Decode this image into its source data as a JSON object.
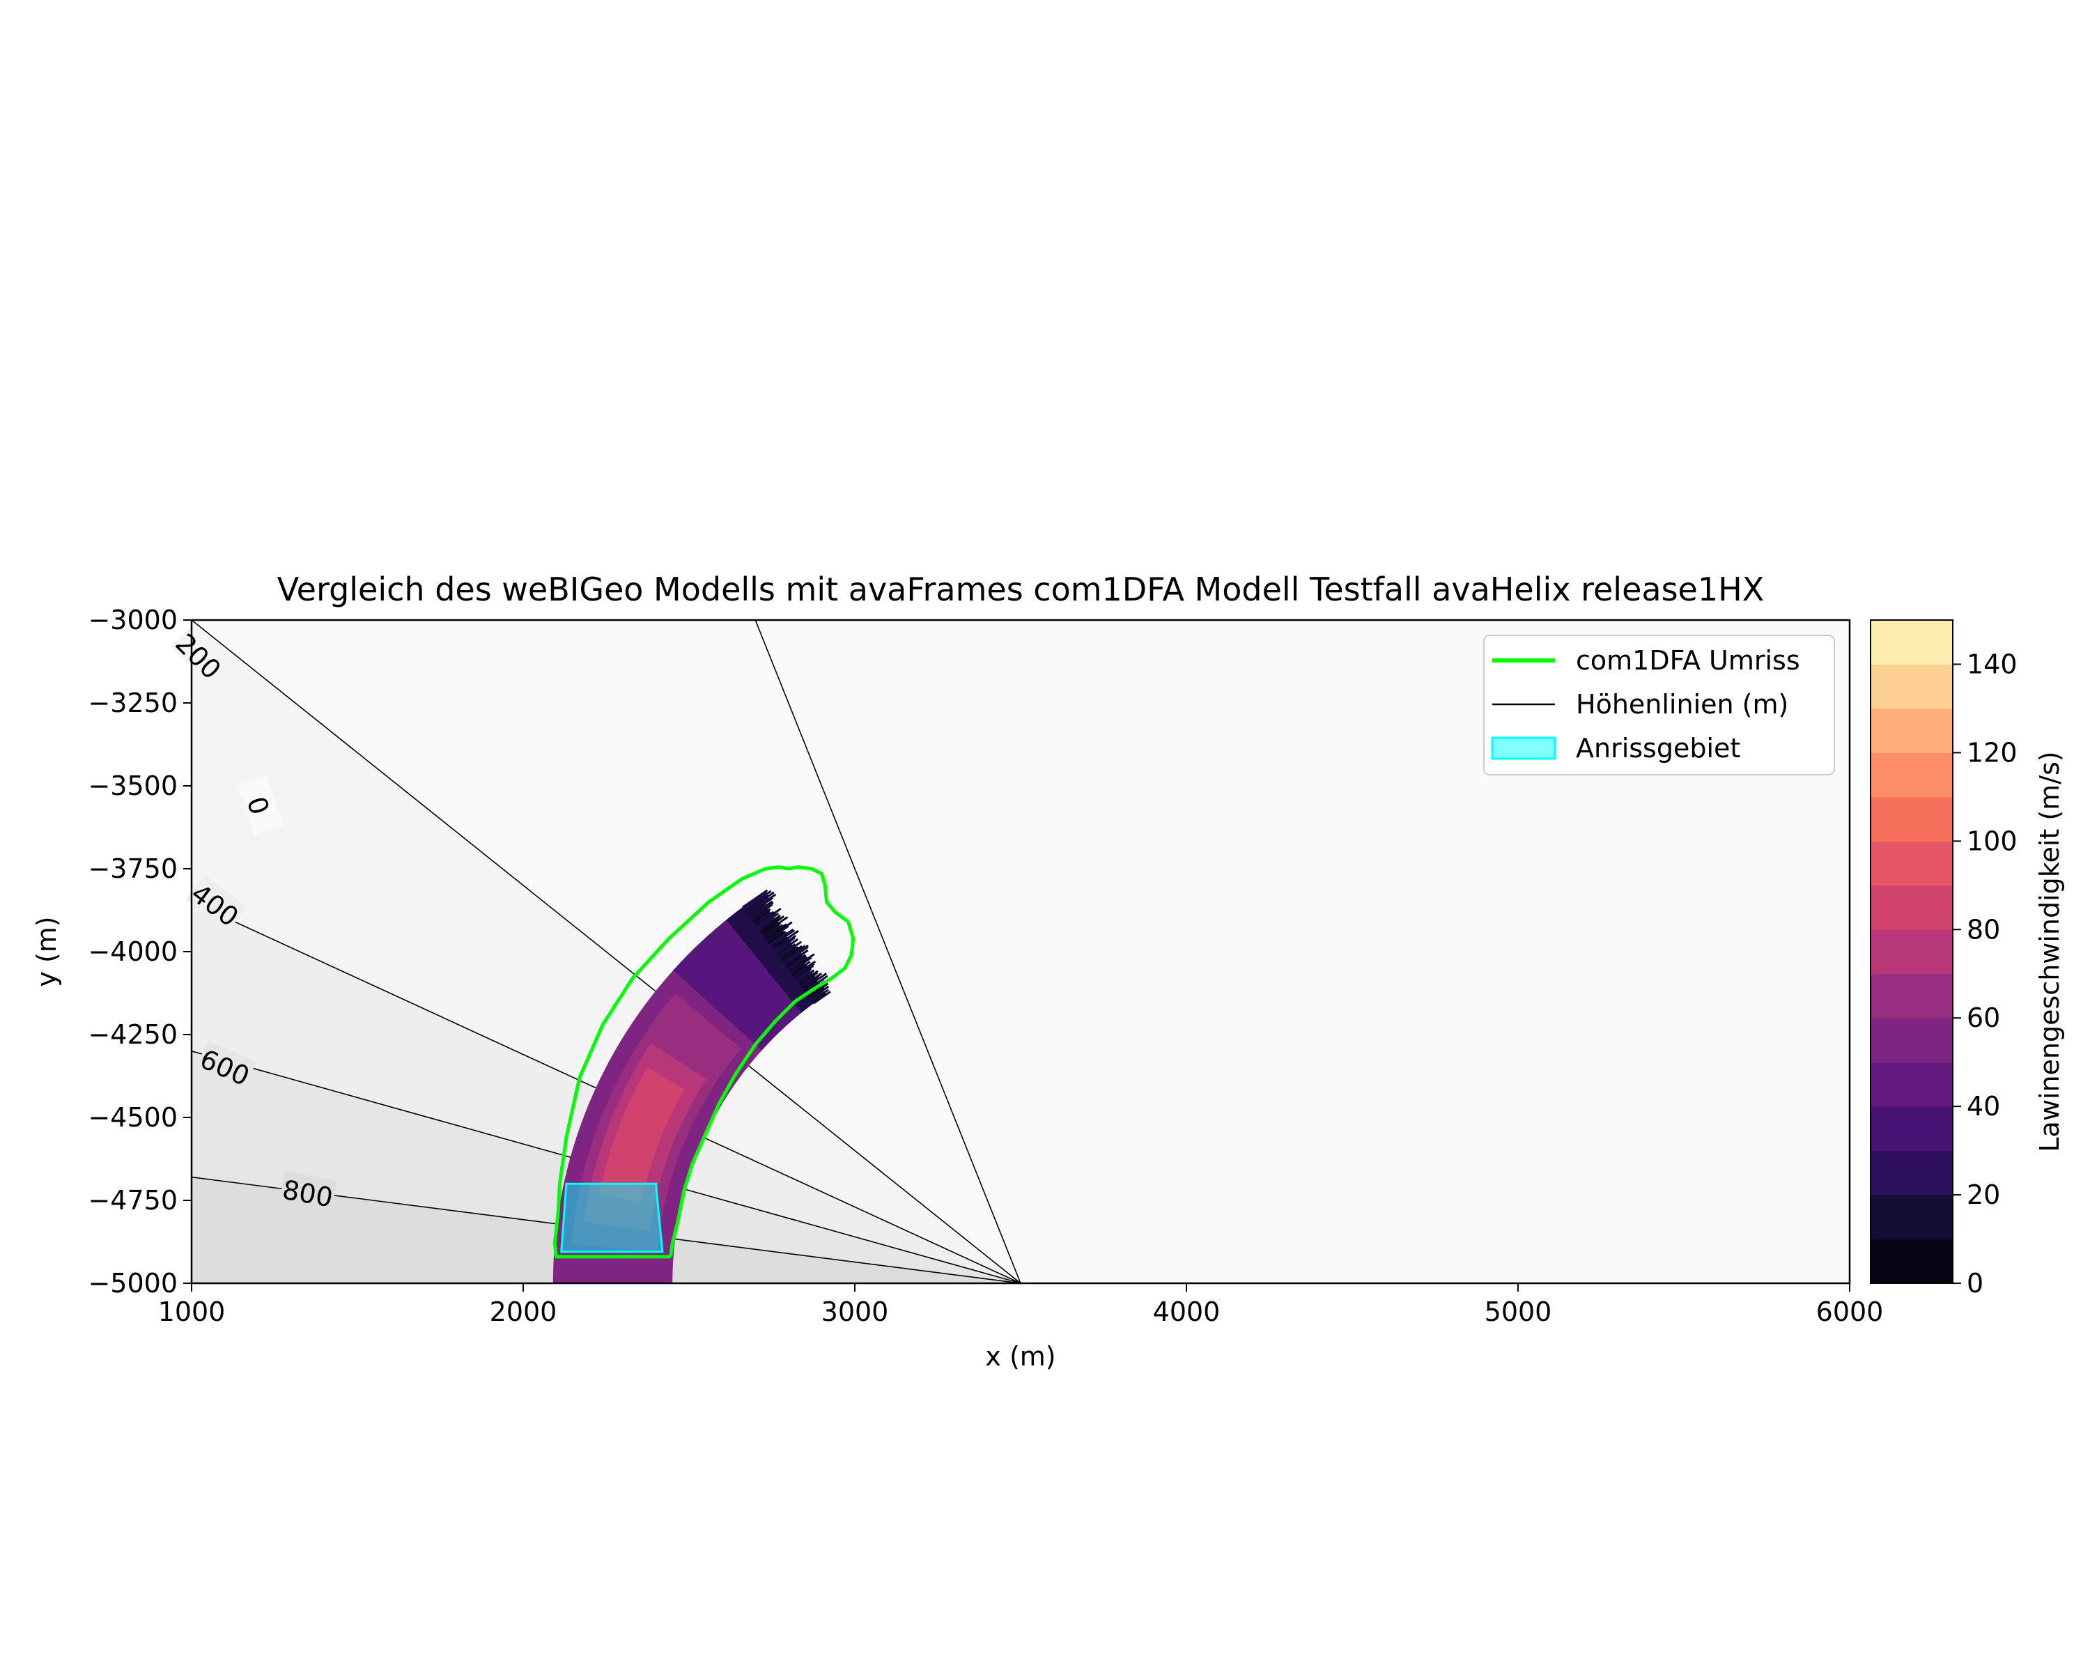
{
  "chart_data": {
    "type": "heatmap",
    "title": "Vergleich des weBIGeo Modells mit avaFrames com1DFA Modell Testfall avaHelix release1HX",
    "xlabel": "x (m)",
    "ylabel": "y (m)",
    "xlim": [
      1000,
      6000
    ],
    "ylim": [
      -5000,
      -3000
    ],
    "xticks": [
      "1000",
      "2000",
      "3000",
      "4000",
      "5000",
      "6000"
    ],
    "yticks": [
      "−3000",
      "−3250",
      "−3500",
      "−3750",
      "−4000",
      "−4250",
      "−4500",
      "−4750",
      "−5000"
    ],
    "legend_placement": "top-right",
    "legend": [
      {
        "label": "com1DFA Umriss",
        "kind": "line",
        "color": "#00ff00"
      },
      {
        "label": "Höhenlinien (m)",
        "kind": "line",
        "color": "#000000"
      },
      {
        "label": "Anrissgebiet",
        "kind": "patch",
        "color": "#00ffff"
      }
    ],
    "colorbar": {
      "label": "Lawinengeschwindigkeit (m/s)",
      "min": 0,
      "max": 150,
      "step": 10,
      "ticks": [
        "0",
        "20",
        "40",
        "60",
        "80",
        "100",
        "120",
        "140"
      ],
      "colors": [
        "#000004",
        "#140e36",
        "#3b0f70",
        "#641a80",
        "#8c2981",
        "#b73779",
        "#de4968",
        "#f7705c",
        "#fe9f6d",
        "#fecf92",
        "#fcfdbf"
      ]
    },
    "contours": {
      "apex": [
        3500,
        -5000
      ],
      "lines": [
        {
          "label": "0",
          "endpoint": [
            2700,
            -3000
          ]
        },
        {
          "label": "200",
          "endpoint": [
            1000,
            -3000
          ]
        },
        {
          "label": "400",
          "endpoint": [
            1000,
            -3850
          ]
        },
        {
          "label": "600",
          "endpoint": [
            1000,
            -4300
          ]
        },
        {
          "label": "800",
          "endpoint": [
            1000,
            -4680
          ]
        }
      ],
      "background_shades": [
        "#fafafa",
        "#f4f4f4",
        "#eeeeee",
        "#e6e6e6",
        "#dddddd"
      ]
    },
    "velocity_field": {
      "center": [
        3500,
        -5000
      ],
      "inner_radius": 1050,
      "outer_radius": 1410,
      "angle_start_deg": 180,
      "angle_end_deg": 125,
      "bands": [
        {
          "r": [
            1050,
            1410
          ],
          "a": [
            180,
            125
          ],
          "value": 55
        },
        {
          "r": [
            1100,
            1360
          ],
          "a": [
            175,
            140
          ],
          "value": 65
        },
        {
          "r": [
            1130,
            1330
          ],
          "a": [
            172,
            147
          ],
          "value": 75
        },
        {
          "r": [
            1170,
            1300
          ],
          "a": [
            168,
            150
          ],
          "value": 85
        },
        {
          "r": [
            1050,
            1410
          ],
          "a": [
            138,
            127
          ],
          "value": 40
        },
        {
          "r": [
            1050,
            1410
          ],
          "a": [
            129,
            124
          ],
          "value": 20
        }
      ]
    },
    "com1DFA_outline": [
      [
        2100,
        -4920
      ],
      [
        2095,
        -4880
      ],
      [
        2105,
        -4790
      ],
      [
        2110,
        -4700
      ],
      [
        2130,
        -4560
      ],
      [
        2170,
        -4380
      ],
      [
        2240,
        -4220
      ],
      [
        2330,
        -4080
      ],
      [
        2440,
        -3960
      ],
      [
        2560,
        -3850
      ],
      [
        2660,
        -3780
      ],
      [
        2730,
        -3750
      ],
      [
        2770,
        -3745
      ],
      [
        2800,
        -3750
      ],
      [
        2830,
        -3745
      ],
      [
        2870,
        -3750
      ],
      [
        2900,
        -3765
      ],
      [
        2910,
        -3800
      ],
      [
        2915,
        -3850
      ],
      [
        2940,
        -3880
      ],
      [
        2980,
        -3910
      ],
      [
        2995,
        -3960
      ],
      [
        2990,
        -4010
      ],
      [
        2970,
        -4050
      ],
      [
        2930,
        -4080
      ],
      [
        2880,
        -4110
      ],
      [
        2820,
        -4150
      ],
      [
        2760,
        -4210
      ],
      [
        2700,
        -4280
      ],
      [
        2640,
        -4370
      ],
      [
        2590,
        -4460
      ],
      [
        2550,
        -4550
      ],
      [
        2510,
        -4640
      ],
      [
        2485,
        -4720
      ],
      [
        2465,
        -4820
      ],
      [
        2450,
        -4880
      ],
      [
        2445,
        -4915
      ],
      [
        2440,
        -4920
      ]
    ],
    "release_area": [
      [
        2130,
        -4700
      ],
      [
        2400,
        -4700
      ],
      [
        2420,
        -4905
      ],
      [
        2115,
        -4905
      ]
    ]
  }
}
